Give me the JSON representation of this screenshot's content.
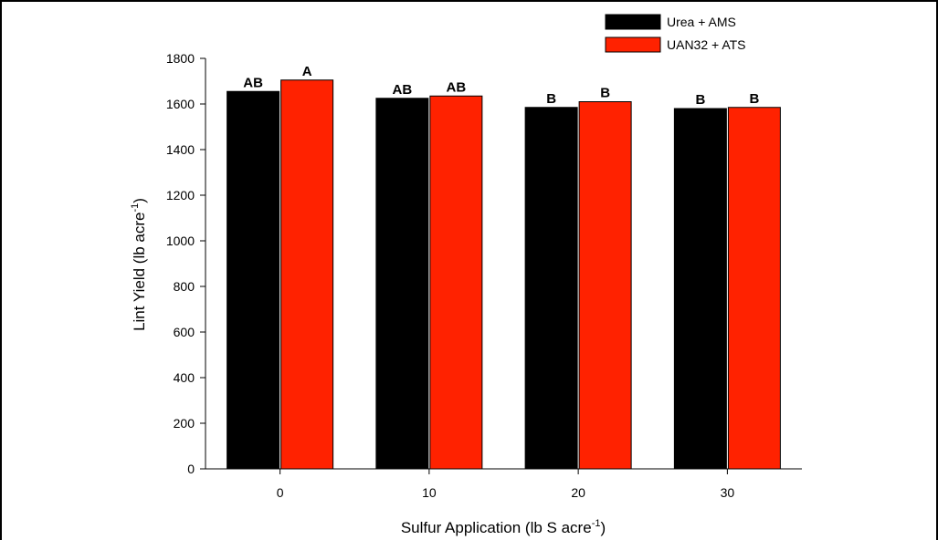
{
  "chart_data": {
    "type": "bar",
    "title": "",
    "xlabel": {
      "main": "Sulfur Application (lb S acre",
      "sup": "-1",
      "close": ")"
    },
    "ylabel": {
      "main": "Lint Yield (lb acre",
      "sup": "-1",
      "close": ")"
    },
    "categories": [
      "0",
      "10",
      "20",
      "30"
    ],
    "ylim": [
      0,
      1800
    ],
    "yticks": [
      0,
      200,
      400,
      600,
      800,
      1000,
      1200,
      1400,
      1600,
      1800
    ],
    "grid": false,
    "legend_position": "top-right",
    "series": [
      {
        "name": "Urea + AMS",
        "color": "#000000",
        "values": [
          1655,
          1625,
          1585,
          1580
        ],
        "labels": [
          "AB",
          "AB",
          "B",
          "B"
        ]
      },
      {
        "name": "UAN32 + ATS",
        "color": "#ff2200",
        "values": [
          1705,
          1635,
          1610,
          1585
        ],
        "labels": [
          "A",
          "AB",
          "B",
          "B"
        ]
      }
    ]
  }
}
